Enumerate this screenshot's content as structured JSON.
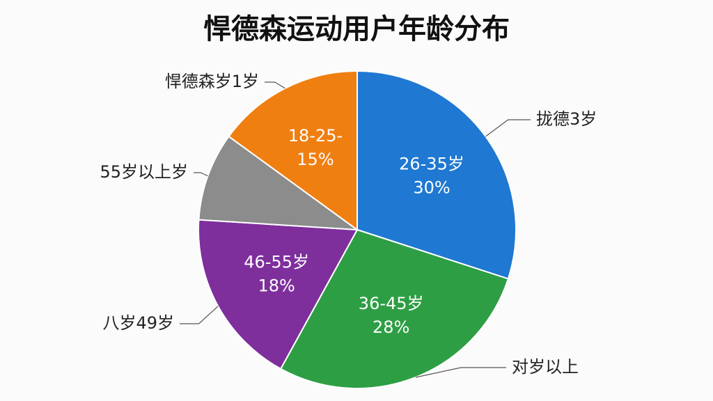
{
  "chart_data": {
    "type": "pie",
    "title": "悍德森运动用户年龄分布",
    "categories": [
      "26-35岁",
      "36-45岁",
      "46-55岁",
      null,
      "18-25-"
    ],
    "values": [
      30,
      28,
      18,
      9,
      15
    ],
    "value_labels": [
      "30%",
      "28%",
      "18%",
      null,
      "15%"
    ],
    "colors": [
      "#1f78d1",
      "#2e9e44",
      "#7e2f9c",
      "#8c8c8c",
      "#f07f12"
    ],
    "annotations": [
      "拢德3岁",
      "对岁以上",
      "八岁49岁",
      "55岁以上岁",
      "悍德森岁1岁"
    ]
  }
}
